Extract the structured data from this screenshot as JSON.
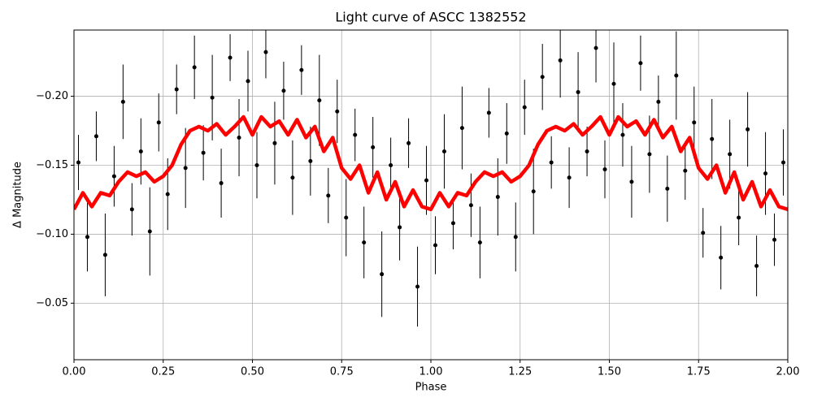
{
  "chart_data": {
    "type": "errorbar",
    "title": "Light curve of ASCC 1382552",
    "xlabel": "Phase",
    "ylabel": "Δ Magnitude",
    "xlim": [
      0,
      2
    ],
    "ylim": [
      -0.009,
      -0.248
    ],
    "grid": true,
    "xticks": [
      {
        "value": 0,
        "label": "0.00"
      },
      {
        "value": 0.25,
        "label": "0.25"
      },
      {
        "value": 0.5,
        "label": "0.50"
      },
      {
        "value": 0.75,
        "label": "0.75"
      },
      {
        "value": 1,
        "label": "1.00"
      },
      {
        "value": 1.25,
        "label": "1.25"
      },
      {
        "value": 1.5,
        "label": "1.50"
      },
      {
        "value": 1.75,
        "label": "1.75"
      },
      {
        "value": 2,
        "label": "2.00"
      }
    ],
    "yticks": [
      {
        "value": -0.05,
        "label": "−0.05"
      },
      {
        "value": -0.1,
        "label": "−0.10"
      },
      {
        "value": -0.15,
        "label": "−0.15"
      },
      {
        "value": -0.2,
        "label": "−0.20"
      }
    ],
    "points": {
      "color": "#000000",
      "x": [
        0.0125,
        0.0375,
        0.0625,
        0.0875,
        0.1125,
        0.1375,
        0.1625,
        0.1875,
        0.2125,
        0.2375,
        0.2625,
        0.2875,
        0.3125,
        0.3375,
        0.3625,
        0.3875,
        0.4125,
        0.4375,
        0.4625,
        0.4875,
        0.5125,
        0.5375,
        0.5625,
        0.5875,
        0.6125,
        0.6375,
        0.6625,
        0.6875,
        0.7125,
        0.7375,
        0.7625,
        0.7875,
        0.8125,
        0.8375,
        0.8625,
        0.8875,
        0.9125,
        0.9375,
        0.9625,
        0.9875,
        1.0125,
        1.0375,
        1.0625,
        1.0875,
        1.1125,
        1.1375,
        1.1625,
        1.1875,
        1.2125,
        1.2375,
        1.2625,
        1.2875,
        1.3125,
        1.3375,
        1.3625,
        1.3875,
        1.4125,
        1.4375,
        1.4625,
        1.4875,
        1.5125,
        1.5375,
        1.5625,
        1.5875,
        1.6125,
        1.6375,
        1.6625,
        1.6875,
        1.7125,
        1.7375,
        1.7625,
        1.7875,
        1.8125,
        1.8375,
        1.8625,
        1.8875,
        1.9125,
        1.9375,
        1.9625,
        1.9875
      ],
      "values": [
        -0.152,
        -0.098,
        -0.171,
        -0.085,
        -0.142,
        -0.196,
        -0.118,
        -0.16,
        -0.102,
        -0.181,
        -0.129,
        -0.205,
        -0.148,
        -0.221,
        -0.159,
        -0.199,
        -0.137,
        -0.228,
        -0.17,
        -0.211,
        -0.15,
        -0.232,
        -0.166,
        -0.204,
        -0.141,
        -0.219,
        -0.153,
        -0.197,
        -0.128,
        -0.189,
        -0.112,
        -0.172,
        -0.094,
        -0.163,
        -0.071,
        -0.15,
        -0.105,
        -0.166,
        -0.062,
        -0.139,
        -0.092,
        -0.16,
        -0.108,
        -0.177,
        -0.121,
        -0.094,
        -0.188,
        -0.127,
        -0.173,
        -0.098,
        -0.192,
        -0.131,
        -0.214,
        -0.152,
        -0.226,
        -0.141,
        -0.203,
        -0.16,
        -0.235,
        -0.147,
        -0.209,
        -0.172,
        -0.138,
        -0.224,
        -0.158,
        -0.196,
        -0.133,
        -0.215,
        -0.146,
        -0.181,
        -0.101,
        -0.169,
        -0.083,
        -0.158,
        -0.112,
        -0.176,
        -0.077,
        -0.144,
        -0.096,
        -0.152
      ],
      "errors": [
        0.02,
        0.025,
        0.018,
        0.03,
        0.022,
        0.027,
        0.019,
        0.024,
        0.032,
        0.021,
        0.026,
        0.018,
        0.029,
        0.023,
        0.02,
        0.031,
        0.025,
        0.017,
        0.028,
        0.022,
        0.024,
        0.019,
        0.03,
        0.021,
        0.027,
        0.018,
        0.025,
        0.033,
        0.02,
        0.023,
        0.028,
        0.019,
        0.026,
        0.022,
        0.031,
        0.02,
        0.024,
        0.018,
        0.029,
        0.025,
        0.021,
        0.027,
        0.019,
        0.03,
        0.023,
        0.026,
        0.018,
        0.028,
        0.022,
        0.025,
        0.02,
        0.031,
        0.024,
        0.019,
        0.027,
        0.022,
        0.029,
        0.018,
        0.025,
        0.021,
        0.03,
        0.023,
        0.026,
        0.02,
        0.028,
        0.019,
        0.024,
        0.032,
        0.021,
        0.026,
        0.018,
        0.029,
        0.023,
        0.025,
        0.02,
        0.027,
        0.022,
        0.03,
        0.019,
        0.024
      ]
    },
    "fit": {
      "color": "#ff0000",
      "x": [
        0,
        0.025,
        0.05,
        0.075,
        0.1,
        0.125,
        0.15,
        0.175,
        0.2,
        0.225,
        0.25,
        0.275,
        0.3,
        0.325,
        0.35,
        0.375,
        0.4,
        0.425,
        0.45,
        0.475,
        0.5,
        0.525,
        0.55,
        0.575,
        0.6,
        0.625,
        0.65,
        0.675,
        0.7,
        0.725,
        0.75,
        0.775,
        0.8,
        0.825,
        0.85,
        0.875,
        0.9,
        0.925,
        0.95,
        0.975,
        1,
        1.025,
        1.05,
        1.075,
        1.1,
        1.125,
        1.15,
        1.175,
        1.2,
        1.225,
        1.25,
        1.275,
        1.3,
        1.325,
        1.35,
        1.375,
        1.4,
        1.425,
        1.45,
        1.475,
        1.5,
        1.525,
        1.55,
        1.575,
        1.6,
        1.625,
        1.65,
        1.675,
        1.7,
        1.725,
        1.75,
        1.775,
        1.8,
        1.825,
        1.85,
        1.875,
        1.9,
        1.925,
        1.95,
        1.975,
        2
      ],
      "values": [
        -0.118,
        -0.13,
        -0.12,
        -0.13,
        -0.128,
        -0.138,
        -0.145,
        -0.142,
        -0.145,
        -0.138,
        -0.142,
        -0.15,
        -0.165,
        -0.175,
        -0.178,
        -0.175,
        -0.18,
        -0.172,
        -0.178,
        -0.185,
        -0.172,
        -0.185,
        -0.178,
        -0.182,
        -0.172,
        -0.183,
        -0.17,
        -0.178,
        -0.16,
        -0.17,
        -0.148,
        -0.14,
        -0.15,
        -0.13,
        -0.145,
        -0.125,
        -0.138,
        -0.12,
        -0.132,
        -0.12,
        -0.118,
        -0.13,
        -0.12,
        -0.13,
        -0.128,
        -0.138,
        -0.145,
        -0.142,
        -0.145,
        -0.138,
        -0.142,
        -0.15,
        -0.165,
        -0.175,
        -0.178,
        -0.175,
        -0.18,
        -0.172,
        -0.178,
        -0.185,
        -0.172,
        -0.185,
        -0.178,
        -0.182,
        -0.172,
        -0.183,
        -0.17,
        -0.178,
        -0.16,
        -0.17,
        -0.148,
        -0.14,
        -0.15,
        -0.13,
        -0.145,
        -0.125,
        -0.138,
        -0.12,
        -0.132,
        -0.12,
        -0.118
      ]
    }
  }
}
